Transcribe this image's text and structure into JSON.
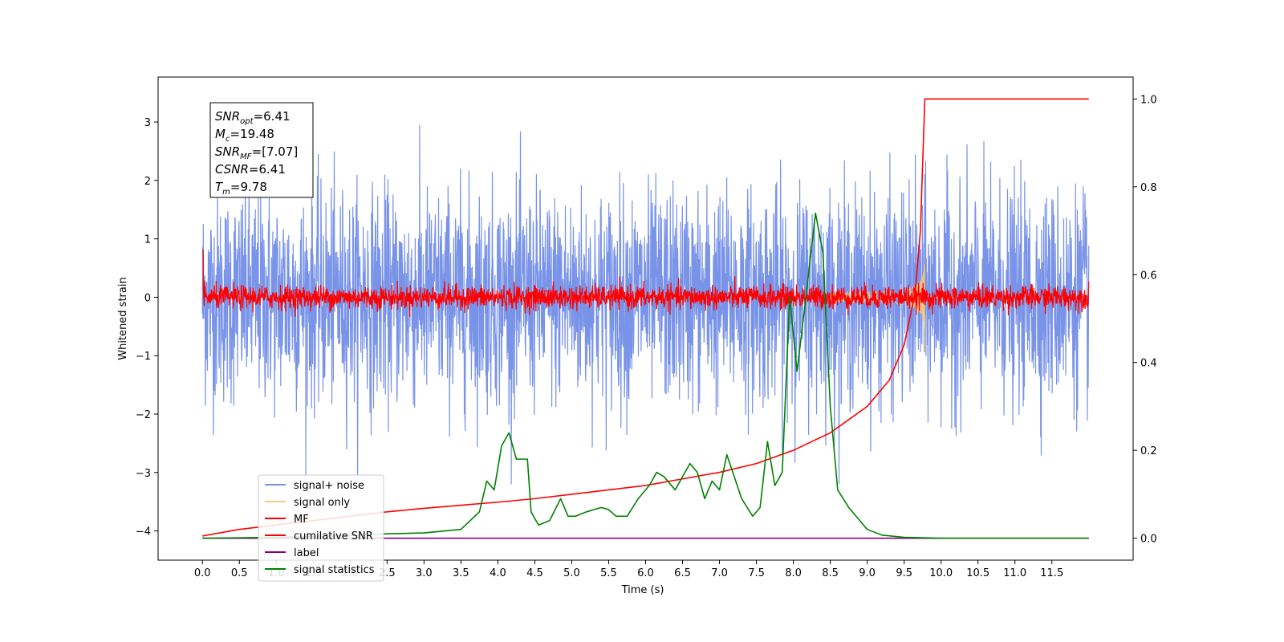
{
  "chart_data": {
    "type": "line",
    "xlabel": "Time (s)",
    "ylabel": "Whitened strain",
    "xlim": [
      -0.6,
      12.6
    ],
    "ylim": [
      -4.5,
      3.77
    ],
    "y2lim": [
      -0.05,
      1.05
    ],
    "x_ticks": [
      "0.0",
      "0.5",
      "1.0",
      "1.5",
      "2.0",
      "2.5",
      "3.0",
      "3.5",
      "4.0",
      "4.5",
      "5.0",
      "5.5",
      "6.0",
      "6.5",
      "7.0",
      "7.5",
      "8.0",
      "8.5",
      "9.0",
      "9.5",
      "10.0",
      "10.5",
      "11.0",
      "11.5"
    ],
    "y_ticks": [
      "3",
      "2",
      "1",
      "0",
      "−1",
      "−2",
      "−3",
      "−4"
    ],
    "y2_ticks": [
      "1.0",
      "0.8",
      "0.6",
      "0.4",
      "0.2",
      "0.0"
    ],
    "annotation": {
      "lines": [
        {
          "sym": "SNR",
          "sub": "opt",
          "val": "=6.41"
        },
        {
          "sym": "M",
          "sub": "c",
          "val": "=19.48"
        },
        {
          "sym": "SNR",
          "sub": "MF",
          "val": "=[7.07]"
        },
        {
          "sym": "CSNR",
          "sub": "",
          "val": "=6.41"
        },
        {
          "sym": "T",
          "sub": "m",
          "val": "=9.78"
        }
      ]
    },
    "legend_position": "lower-left",
    "series": [
      {
        "name": "signal+ noise",
        "color": "#7893e8",
        "axis": "left",
        "x_range": [
          0,
          12
        ],
        "amplitude": 1.9
      },
      {
        "name": "signal only",
        "color": "#f5c87a",
        "axis": "left",
        "chirp_end": 9.78
      },
      {
        "name": "MF",
        "color": "#ff0000",
        "axis": "left",
        "x_range": [
          0,
          12
        ],
        "amplitude": 0.22
      },
      {
        "name": "cumilative SNR",
        "color": "#ff0000",
        "axis": "right",
        "x": [
          0.0,
          0.5,
          1.0,
          1.5,
          2.0,
          2.5,
          3.0,
          3.5,
          4.0,
          4.5,
          5.0,
          5.5,
          6.0,
          6.5,
          7.0,
          7.5,
          8.0,
          8.5,
          9.0,
          9.3,
          9.5,
          9.65,
          9.72,
          9.78,
          10.0,
          11.0,
          12.0
        ],
        "y": [
          0.005,
          0.02,
          0.03,
          0.04,
          0.05,
          0.06,
          0.068,
          0.075,
          0.082,
          0.09,
          0.1,
          0.11,
          0.12,
          0.135,
          0.15,
          0.17,
          0.2,
          0.24,
          0.3,
          0.36,
          0.44,
          0.56,
          0.7,
          1.0,
          1.0,
          1.0,
          1.0
        ]
      },
      {
        "name": "label",
        "color": "#800080",
        "axis": "right",
        "x": [
          0.0,
          12.0
        ],
        "y": [
          0.0,
          0.0
        ]
      },
      {
        "name": "signal statistics",
        "color": "#008000",
        "axis": "right",
        "x": [
          0.0,
          1.0,
          2.0,
          2.5,
          3.0,
          3.5,
          3.75,
          3.85,
          3.95,
          4.05,
          4.15,
          4.25,
          4.4,
          4.45,
          4.55,
          4.7,
          4.85,
          4.95,
          5.05,
          5.2,
          5.4,
          5.5,
          5.6,
          5.75,
          5.9,
          6.05,
          6.15,
          6.25,
          6.4,
          6.5,
          6.6,
          6.7,
          6.8,
          6.9,
          7.0,
          7.1,
          7.2,
          7.3,
          7.45,
          7.55,
          7.65,
          7.75,
          7.85,
          7.95,
          8.05,
          8.15,
          8.3,
          8.4,
          8.5,
          8.6,
          8.75,
          8.9,
          9.0,
          9.2,
          9.5,
          10.0,
          11.0,
          12.0
        ],
        "y": [
          0.0,
          0.002,
          0.006,
          0.01,
          0.012,
          0.02,
          0.06,
          0.13,
          0.11,
          0.21,
          0.24,
          0.18,
          0.18,
          0.06,
          0.03,
          0.04,
          0.09,
          0.05,
          0.05,
          0.06,
          0.07,
          0.065,
          0.05,
          0.05,
          0.09,
          0.12,
          0.15,
          0.14,
          0.11,
          0.14,
          0.17,
          0.15,
          0.09,
          0.13,
          0.11,
          0.19,
          0.14,
          0.09,
          0.05,
          0.07,
          0.22,
          0.12,
          0.15,
          0.55,
          0.38,
          0.52,
          0.74,
          0.65,
          0.3,
          0.11,
          0.07,
          0.04,
          0.02,
          0.007,
          0.002,
          0.0,
          0.0,
          0.0
        ]
      }
    ]
  }
}
